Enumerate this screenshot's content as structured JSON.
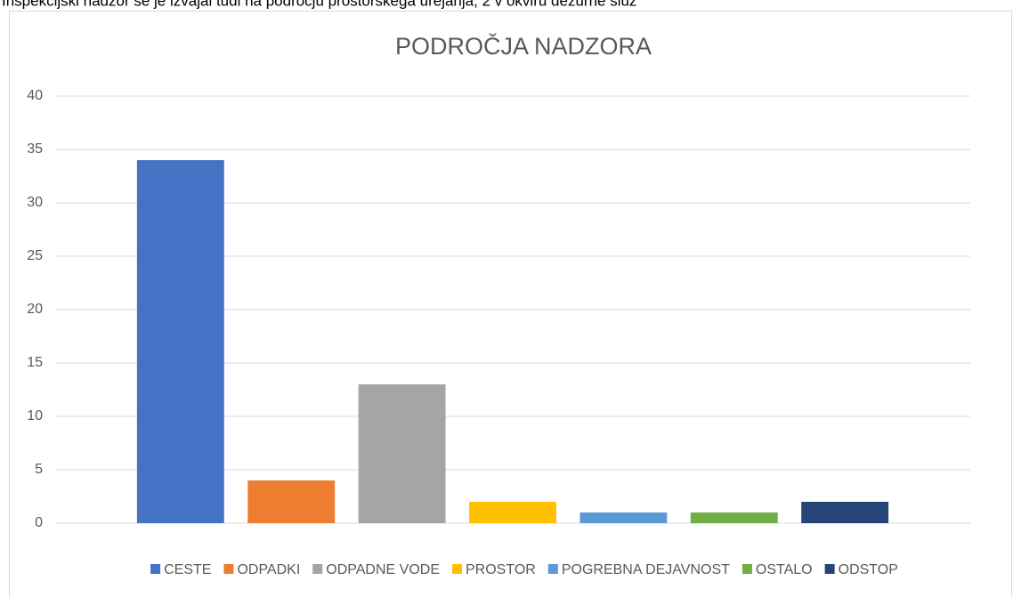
{
  "page_text": "Inšpekcijski nadzor se je izvajal tudi na področju prostorskega urejanja, 2 v okviru dežurne služ",
  "chart_data": {
    "type": "bar",
    "title": "PODROČJA NADZORA",
    "categories": [
      null
    ],
    "series": [
      {
        "name": "CESTE",
        "color": "#4472c4",
        "values": [
          34
        ]
      },
      {
        "name": "ODPADKI",
        "color": "#ed7d31",
        "values": [
          4
        ]
      },
      {
        "name": "ODPADNE VODE",
        "color": "#a5a5a5",
        "values": [
          13
        ]
      },
      {
        "name": "PROSTOR",
        "color": "#ffc000",
        "values": [
          2
        ]
      },
      {
        "name": "POGREBNA DEJAVNOST",
        "color": "#5b9bd5",
        "values": [
          1
        ]
      },
      {
        "name": "OSTALO",
        "color": "#70ad47",
        "values": [
          1
        ]
      },
      {
        "name": "ODSTOP",
        "color": "#264478",
        "values": [
          2
        ]
      }
    ],
    "ylim": [
      0,
      40
    ],
    "yticks": [
      0,
      5,
      10,
      15,
      20,
      25,
      30,
      35,
      40
    ],
    "grid": true,
    "legend": "bottom"
  }
}
